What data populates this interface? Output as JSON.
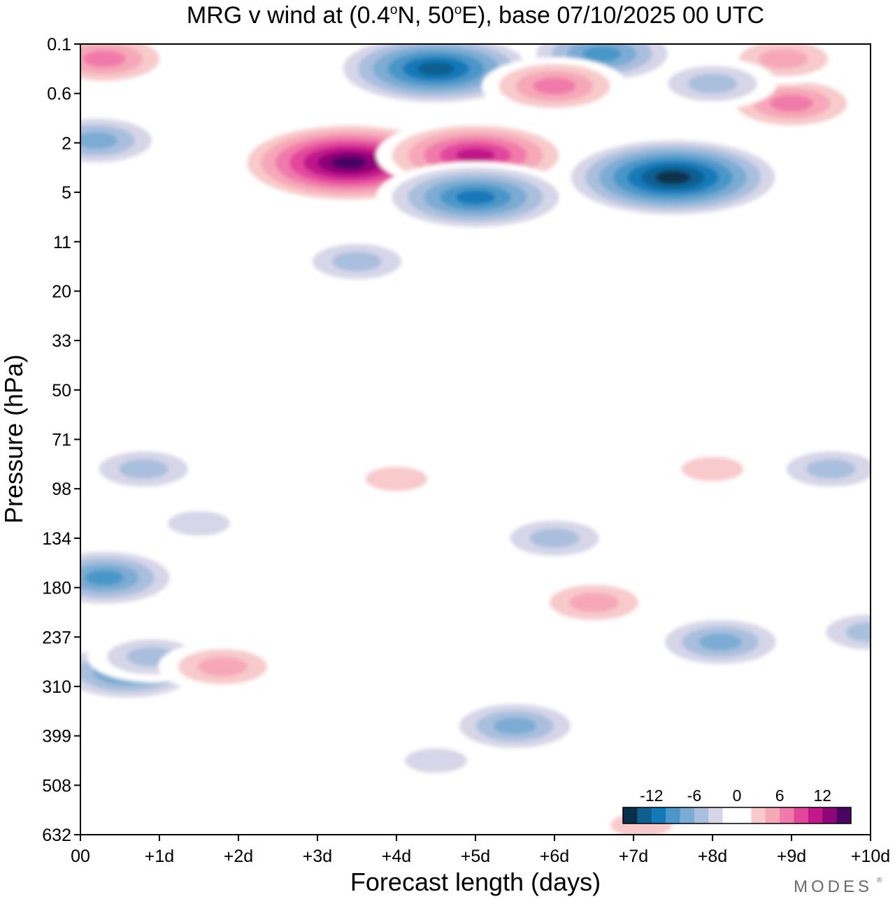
{
  "chart_data": {
    "type": "heatmap",
    "title": "MRG v wind at (0.4°N, 50°E),  base 07/10/2025  00 UTC",
    "title_parts": {
      "prefix": "MRG v wind at (0.4",
      "deg1": "o",
      "mid": "N, 50",
      "deg2": "o",
      "suffix": "E),  base 07/10/2025  00 UTC"
    },
    "xlabel": "Forecast length (days)",
    "ylabel": "Pressure (hPa)",
    "xlim": [
      0,
      10
    ],
    "x_ticks": [
      {
        "value": 0,
        "label": "00"
      },
      {
        "value": 1,
        "label": "+1d"
      },
      {
        "value": 2,
        "label": "+2d"
      },
      {
        "value": 3,
        "label": "+3d"
      },
      {
        "value": 4,
        "label": "+4d"
      },
      {
        "value": 5,
        "label": "+5d"
      },
      {
        "value": 6,
        "label": "+6d"
      },
      {
        "value": 7,
        "label": "+7d"
      },
      {
        "value": 8,
        "label": "+8d"
      },
      {
        "value": 9,
        "label": "+9d"
      },
      {
        "value": 10,
        "label": "+10d"
      }
    ],
    "y_ticks": [
      "0.1",
      "0.6",
      "2",
      "5",
      "11",
      "20",
      "33",
      "50",
      "71",
      "98",
      "134",
      "180",
      "237",
      "310",
      "399",
      "508",
      "632"
    ],
    "colorbar": {
      "levels": [
        -16,
        -14,
        -12,
        -10,
        -8,
        -6,
        -4,
        -2,
        2,
        4,
        6,
        8,
        10,
        12,
        14,
        16
      ],
      "tick_values": [
        -12,
        -6,
        0,
        6,
        12
      ],
      "tick_labels": [
        "-12",
        "-6",
        "0",
        "6",
        "12"
      ],
      "colors": [
        "#083049",
        "#0c5f8f",
        "#1479b8",
        "#4a97c8",
        "#7cacd3",
        "#a9bfdd",
        "#d6d6e8",
        "#ffffff",
        "#ffffff",
        "#f8cacb",
        "#f6a8b8",
        "#f07aaa",
        "#e2479b",
        "#c1188a",
        "#8e0677",
        "#4a0465"
      ]
    },
    "features": [
      {
        "day": 3.4,
        "level_index": 2.4,
        "value": 16
      },
      {
        "day": 5.0,
        "level_index": 2.25,
        "value": 12
      },
      {
        "day": 7.5,
        "level_index": 2.7,
        "value": -16
      },
      {
        "day": 4.5,
        "level_index": 0.5,
        "value": -14
      },
      {
        "day": 5.0,
        "level_index": 3.1,
        "value": -12
      },
      {
        "day": 6.6,
        "level_index": 0.2,
        "value": -10
      },
      {
        "day": 0.3,
        "level_index": 0.3,
        "value": 8
      },
      {
        "day": 6.0,
        "level_index": 0.85,
        "value": 8
      },
      {
        "day": 9.0,
        "level_index": 1.2,
        "value": 8
      },
      {
        "day": 8.9,
        "level_index": 0.3,
        "value": 6
      },
      {
        "day": 0.2,
        "level_index": 1.95,
        "value": -8
      },
      {
        "day": 8.0,
        "level_index": 0.8,
        "value": -6
      },
      {
        "day": 3.5,
        "level_index": 4.4,
        "value": -6
      },
      {
        "day": 0.3,
        "level_index": 10.8,
        "value": -10
      },
      {
        "day": 0.6,
        "level_index": 12.7,
        "value": -10
      },
      {
        "day": 0.9,
        "level_index": 12.4,
        "value": -6
      },
      {
        "day": 1.8,
        "level_index": 12.6,
        "value": 6
      },
      {
        "day": 5.5,
        "level_index": 13.8,
        "value": -8
      },
      {
        "day": 8.1,
        "level_index": 12.1,
        "value": -8
      },
      {
        "day": 10.0,
        "level_index": 11.9,
        "value": -6
      },
      {
        "day": 6.5,
        "level_index": 11.3,
        "value": 6
      },
      {
        "day": 6.0,
        "level_index": 10.0,
        "value": -6
      },
      {
        "day": 4.0,
        "level_index": 8.8,
        "value": 4
      },
      {
        "day": 0.8,
        "level_index": 8.6,
        "value": -6
      },
      {
        "day": 9.5,
        "level_index": 8.6,
        "value": -6
      },
      {
        "day": 8.0,
        "level_index": 8.6,
        "value": 4
      },
      {
        "day": 1.5,
        "level_index": 9.7,
        "value": -4
      },
      {
        "day": 7.1,
        "level_index": 15.8,
        "value": 4
      },
      {
        "day": 4.5,
        "level_index": 14.5,
        "value": -4
      }
    ]
  },
  "branding": {
    "logo_text": "MODES",
    "logo_mark": "®"
  }
}
